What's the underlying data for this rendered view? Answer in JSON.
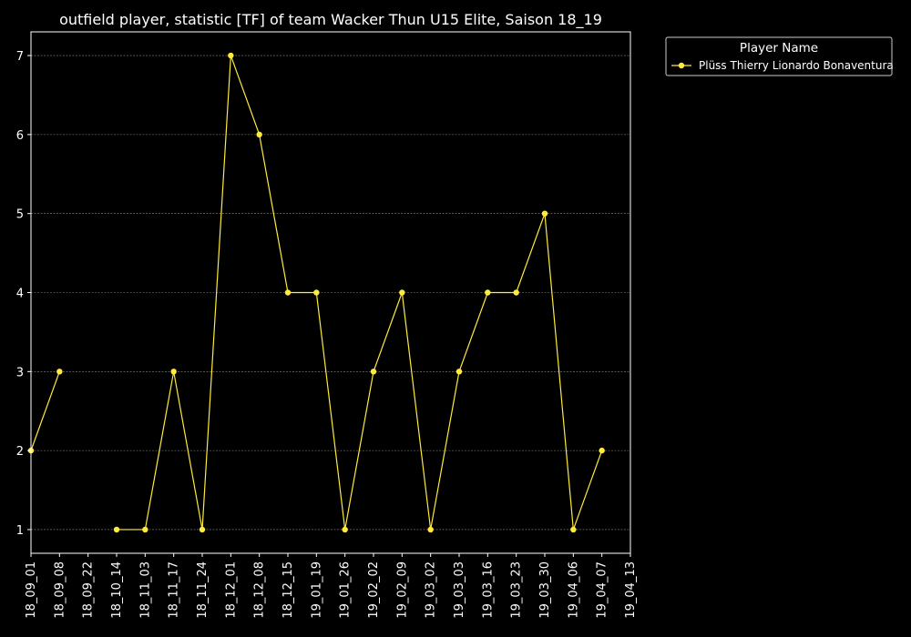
{
  "chart_data": {
    "type": "line",
    "title": "outfield player, statistic [TF] of team Wacker Thun U15 Elite, Saison 18_19",
    "xlabel": "",
    "ylabel": "",
    "categories": [
      "18_09_01",
      "18_09_08",
      "18_09_22",
      "18_10_14",
      "18_11_03",
      "18_11_17",
      "18_11_24",
      "18_12_01",
      "18_12_08",
      "18_12_15",
      "19_01_19",
      "19_01_26",
      "19_02_02",
      "19_02_09",
      "19_03_02",
      "19_03_03",
      "19_03_16",
      "19_03_23",
      "19_03_30",
      "19_04_06",
      "19_04_07",
      "19_04_13"
    ],
    "yticks": [
      1,
      2,
      3,
      4,
      5,
      6,
      7
    ],
    "ylim": [
      0.7,
      7.3
    ],
    "grid": true,
    "legend": {
      "title": "Player Name",
      "placement": "outside-top-right"
    },
    "series": [
      {
        "name": "Plüss Thierry Lionardo Bonaventura",
        "color": "#ffeb3b",
        "values": [
          2,
          3,
          null,
          1,
          1,
          3,
          1,
          7,
          6,
          4,
          4,
          1,
          3,
          4,
          1,
          3,
          4,
          4,
          5,
          1,
          2,
          null
        ]
      }
    ]
  }
}
